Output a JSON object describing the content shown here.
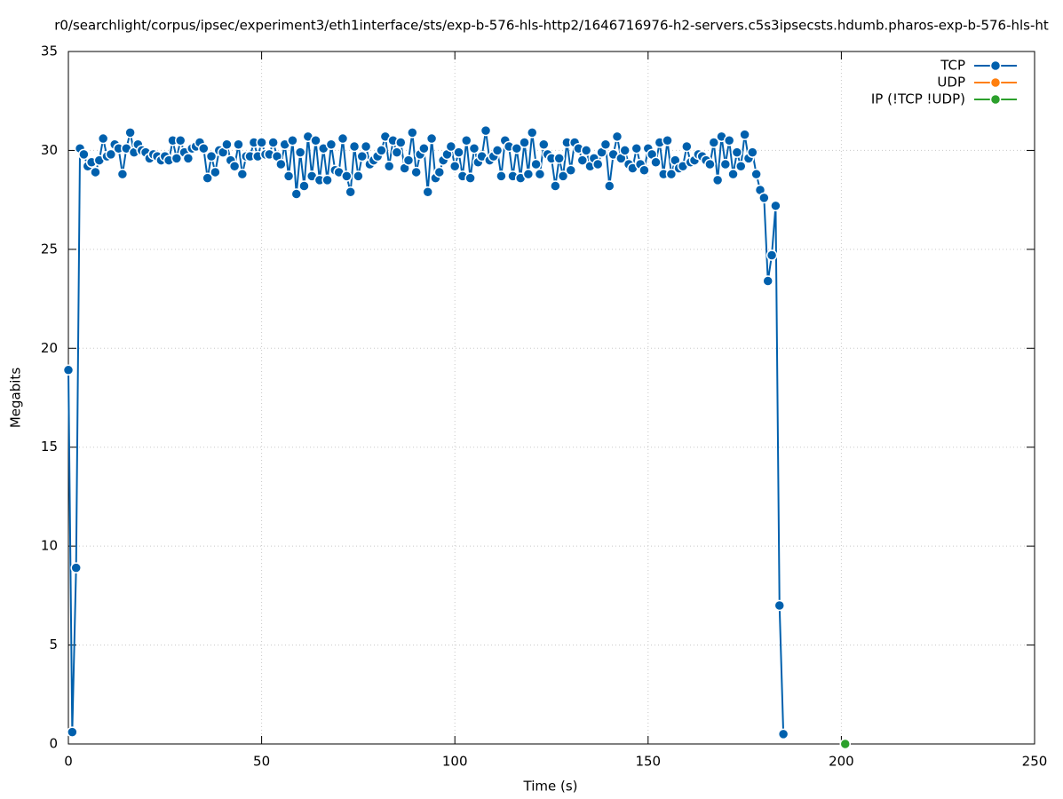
{
  "chart_data": {
    "type": "line",
    "title": "r0/searchlight/corpus/ipsec/experiment3/eth1interface/sts/exp-b-576-hls-http2/1646716976-h2-servers.c5s3ipsecsts.hdumb.pharos-exp-b-576-hls-ht",
    "xlabel": "Time (s)",
    "ylabel": "Megabits",
    "xlim": [
      0,
      250
    ],
    "ylim": [
      0,
      35
    ],
    "xticks": [
      0,
      50,
      100,
      150,
      200,
      250
    ],
    "yticks": [
      0,
      5,
      10,
      15,
      20,
      25,
      30,
      35
    ],
    "grid": true,
    "legend": "upper right",
    "series": [
      {
        "name": "TCP",
        "color": "#0060ad",
        "x": [
          0,
          1,
          2,
          3,
          4,
          5,
          6,
          7,
          8,
          9,
          10,
          11,
          12,
          13,
          14,
          15,
          16,
          17,
          18,
          19,
          20,
          21,
          22,
          23,
          24,
          25,
          26,
          27,
          28,
          29,
          30,
          31,
          32,
          33,
          34,
          35,
          36,
          37,
          38,
          39,
          40,
          41,
          42,
          43,
          44,
          45,
          46,
          47,
          48,
          49,
          50,
          51,
          52,
          53,
          54,
          55,
          56,
          57,
          58,
          59,
          60,
          61,
          62,
          63,
          64,
          65,
          66,
          67,
          68,
          69,
          70,
          71,
          72,
          73,
          74,
          75,
          76,
          77,
          78,
          79,
          80,
          81,
          82,
          83,
          84,
          85,
          86,
          87,
          88,
          89,
          90,
          91,
          92,
          93,
          94,
          95,
          96,
          97,
          98,
          99,
          100,
          101,
          102,
          103,
          104,
          105,
          106,
          107,
          108,
          109,
          110,
          111,
          112,
          113,
          114,
          115,
          116,
          117,
          118,
          119,
          120,
          121,
          122,
          123,
          124,
          125,
          126,
          127,
          128,
          129,
          130,
          131,
          132,
          133,
          134,
          135,
          136,
          137,
          138,
          139,
          140,
          141,
          142,
          143,
          144,
          145,
          146,
          147,
          148,
          149,
          150,
          151,
          152,
          153,
          154,
          155,
          156,
          157,
          158,
          159,
          160,
          161,
          162,
          163,
          164,
          165,
          166,
          167,
          168,
          169,
          170,
          171,
          172,
          173,
          174,
          175,
          176,
          177,
          178,
          179,
          180,
          181,
          182,
          183,
          184,
          185
        ],
        "values": [
          18.9,
          0.6,
          8.9,
          30.1,
          29.8,
          29.2,
          29.4,
          28.9,
          29.5,
          30.6,
          29.7,
          29.8,
          30.3,
          30.1,
          28.8,
          30.1,
          30.9,
          29.9,
          30.3,
          30.0,
          29.9,
          29.6,
          29.8,
          29.7,
          29.5,
          29.7,
          29.5,
          30.5,
          29.6,
          30.5,
          29.9,
          29.6,
          30.1,
          30.2,
          30.4,
          30.1,
          28.6,
          29.7,
          28.9,
          30.0,
          29.9,
          30.3,
          29.5,
          29.2,
          30.3,
          28.8,
          29.7,
          29.7,
          30.4,
          29.7,
          30.4,
          29.8,
          29.8,
          30.4,
          29.7,
          29.3,
          30.3,
          28.7,
          30.5,
          27.8,
          29.9,
          28.2,
          30.7,
          28.7,
          30.5,
          28.5,
          30.1,
          28.5,
          30.3,
          29.0,
          28.9,
          30.6,
          28.7,
          27.9,
          30.2,
          28.7,
          29.7,
          30.2,
          29.3,
          29.5,
          29.7,
          30.0,
          30.7,
          29.2,
          30.5,
          29.9,
          30.4,
          29.1,
          29.5,
          30.9,
          28.9,
          29.8,
          30.1,
          27.9,
          30.6,
          28.6,
          28.9,
          29.5,
          29.8,
          30.2,
          29.2,
          29.9,
          28.7,
          30.5,
          28.6,
          30.1,
          29.4,
          29.7,
          31.0,
          29.5,
          29.7,
          30.0,
          28.7,
          30.5,
          30.2,
          28.7,
          30.1,
          28.6,
          30.4,
          28.8,
          30.9,
          29.3,
          28.8,
          30.3,
          29.8,
          29.6,
          28.2,
          29.6,
          28.7,
          30.4,
          29.0,
          30.4,
          30.1,
          29.5,
          30.0,
          29.2,
          29.6,
          29.3,
          29.9,
          30.3,
          28.2,
          29.8,
          30.7,
          29.6,
          30.0,
          29.3,
          29.1,
          30.1,
          29.3,
          29.0,
          30.1,
          29.8,
          29.4,
          30.4,
          28.8,
          30.5,
          28.8,
          29.5,
          29.1,
          29.2,
          30.2,
          29.4,
          29.5,
          29.8,
          29.7,
          29.5,
          29.3,
          30.4,
          28.5,
          30.7,
          29.3,
          30.5,
          28.8,
          29.9,
          29.2,
          30.8,
          29.6,
          29.9,
          28.8,
          28.0,
          27.6,
          23.4,
          24.7,
          27.2,
          7.0,
          0.5
        ]
      },
      {
        "name": "UDP",
        "color": "#ff7f0e",
        "x": [],
        "values": []
      },
      {
        "name": "IP (!TCP  !UDP)",
        "color": "#2ca02c",
        "x": [
          201
        ],
        "values": [
          0
        ]
      }
    ]
  }
}
